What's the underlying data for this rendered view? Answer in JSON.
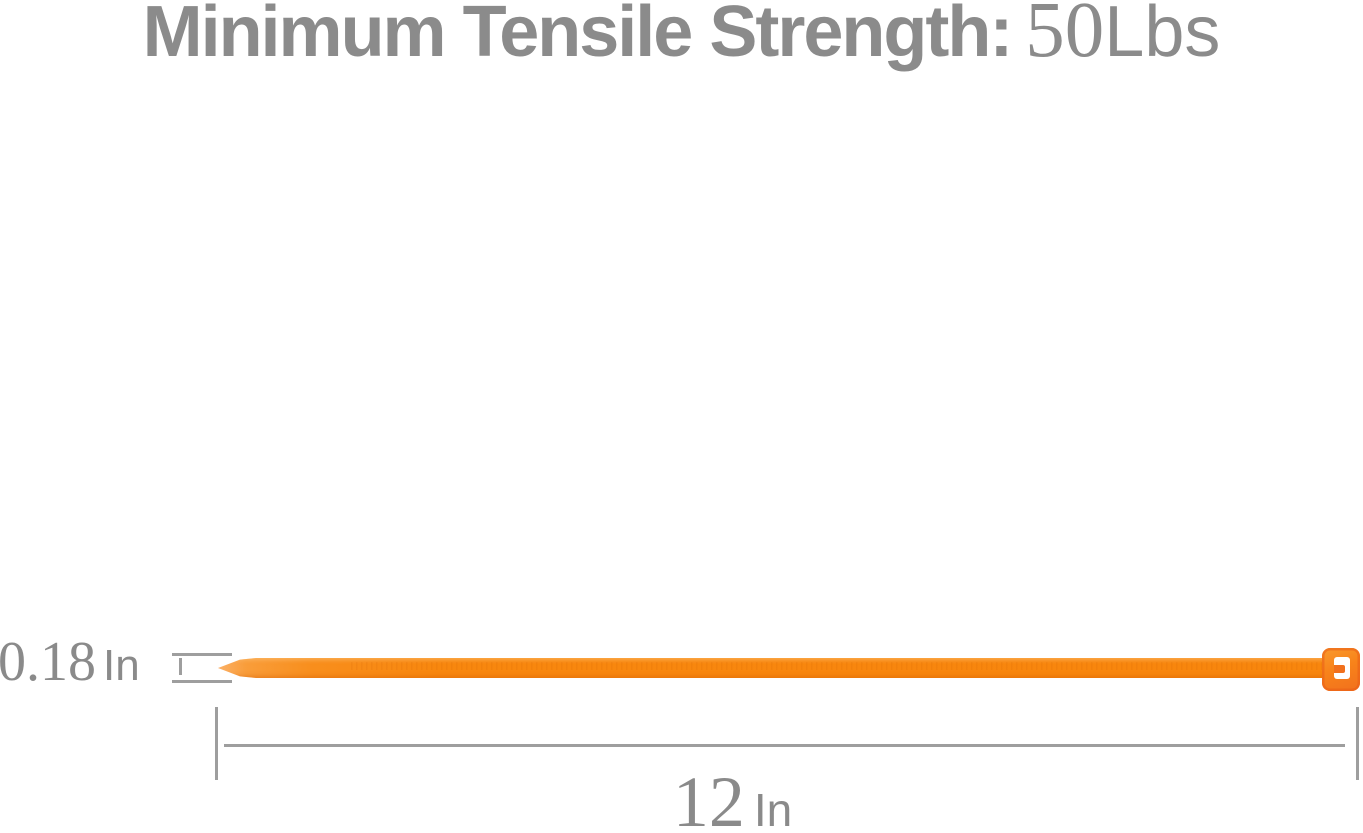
{
  "title": {
    "label": "Minimum Tensile Strength:",
    "value": "50",
    "unit": "Lbs"
  },
  "width_dimension": {
    "value": "0.18",
    "unit": "In"
  },
  "length_dimension": {
    "value": "12",
    "unit": "In"
  },
  "colors": {
    "background": "#FFFFFF",
    "text_gray": "#8B8B8B",
    "dimension_line_gray": "#9E9E9E",
    "tie_strap_orange": "#F8860D",
    "tie_tip_orange": "#FBB067",
    "tie_head_orange": "#F1701D",
    "tie_head_slot_white": "#FFFFFF"
  }
}
